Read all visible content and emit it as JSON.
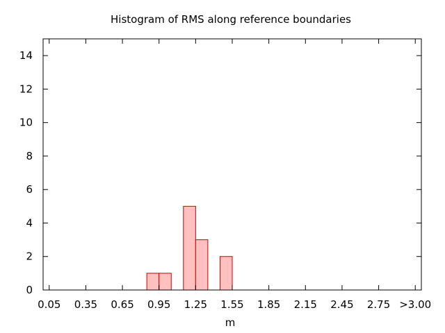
{
  "chart_data": {
    "type": "bar",
    "title": "Histogram of RMS along reference boundaries",
    "xlabel": "m",
    "ylabel": "",
    "x_ticks": [
      "0.05",
      "0.35",
      "0.65",
      "0.95",
      "1.25",
      "1.55",
      "1.85",
      "2.15",
      "2.45",
      "2.75",
      ">3.00"
    ],
    "y_ticks": [
      "0",
      "2",
      "4",
      "6",
      "8",
      "10",
      "12",
      "14"
    ],
    "xlim": [
      0.0,
      3.1
    ],
    "ylim": [
      0,
      15
    ],
    "bin_width": 0.1,
    "bins": [
      {
        "x": 0.85,
        "value": 1
      },
      {
        "x": 0.95,
        "value": 1
      },
      {
        "x": 1.15,
        "value": 5
      },
      {
        "x": 1.25,
        "value": 3
      },
      {
        "x": 1.45,
        "value": 2
      }
    ],
    "colors": {
      "fill": "#ffc0c0",
      "stroke": "#cc0000",
      "frame": "#000000"
    },
    "grid": false,
    "legend": "none"
  }
}
